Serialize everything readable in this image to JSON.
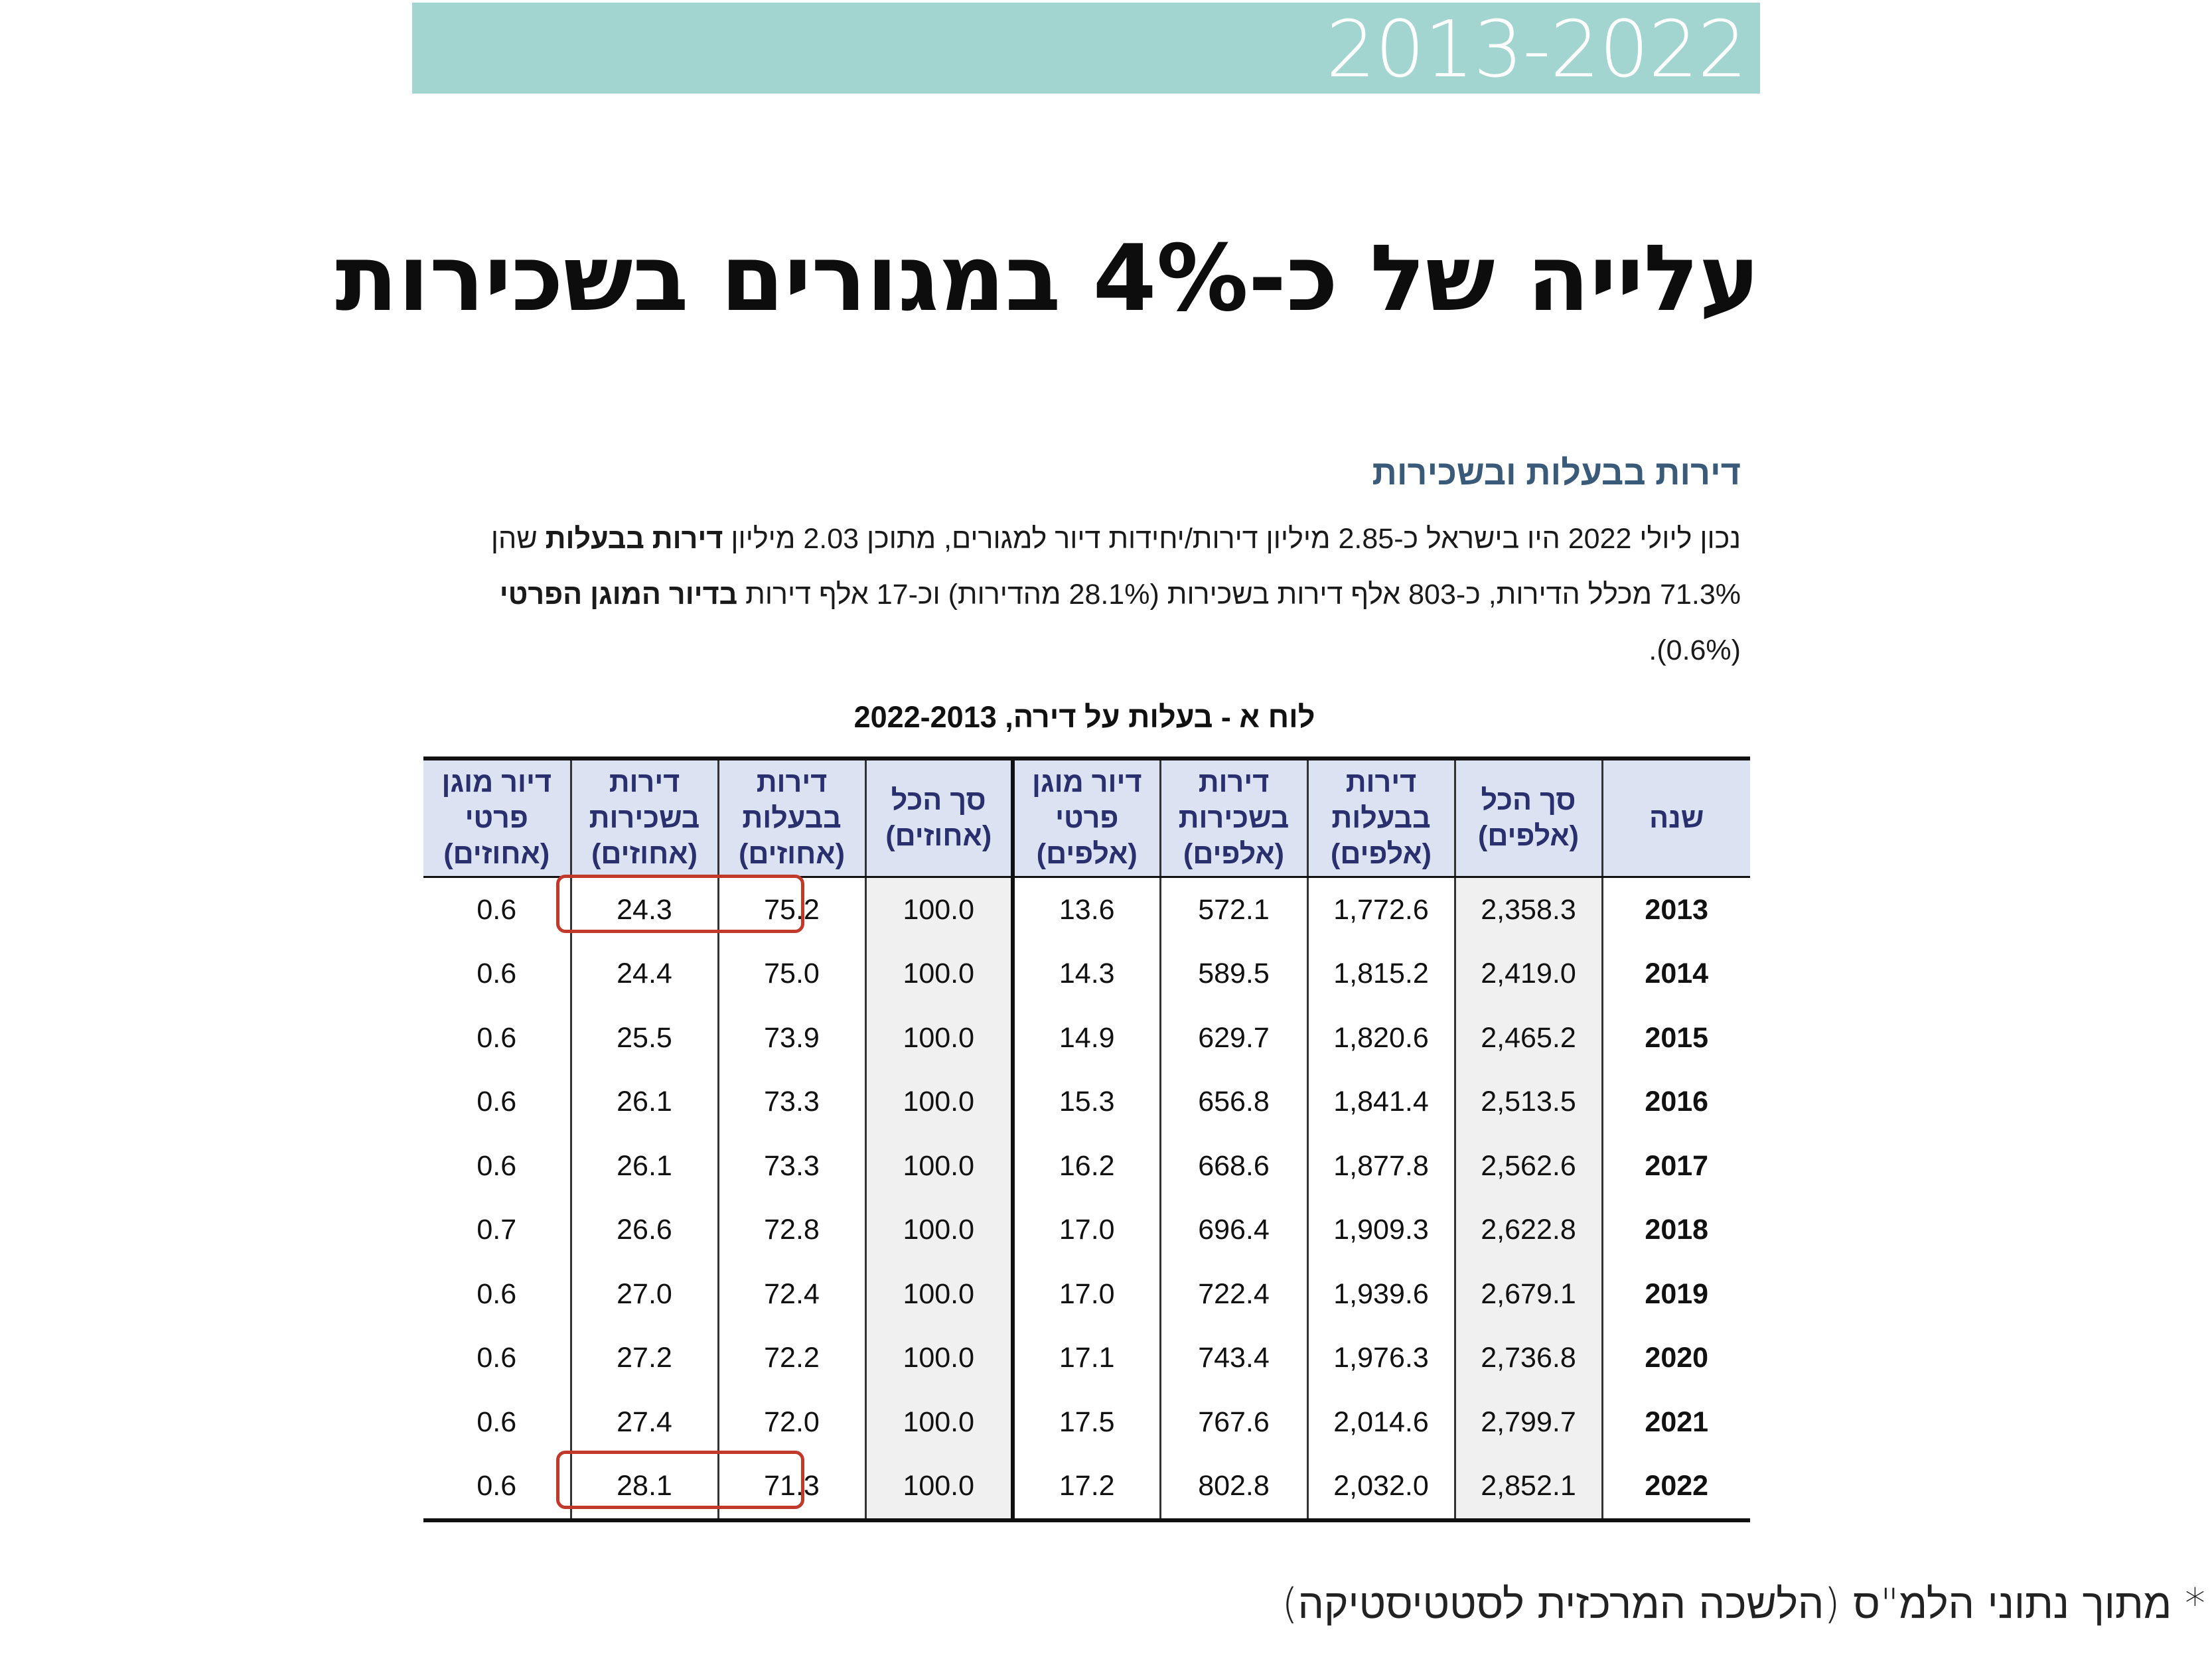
{
  "banner": {
    "years": "2013-2022"
  },
  "headline": "עלייה של כ-4% במגורים בשכירות",
  "section": {
    "title": "דירות בבעלות ובשכירות",
    "para": {
      "p1": "נכון ליולי 2022 היו בישראל כ-2.85 מיליון דירות/יחידות דיור למגורים, מתוכן 2.03 מיליון ",
      "b1": "דירות בבעלות",
      "p2": " שהן 71.3% מכלל הדירות, כ-803 אלף דירות בשכירות (28.1% מהדירות) וכ-17 אלף דירות ",
      "b2": "בדיור המוגן הפרטי",
      "p3": " (0.6%)."
    }
  },
  "table": {
    "caption": "לוח א - בעלות על דירה, 2022-2013",
    "headers": [
      "שנה",
      "סך הכל (אלפים)",
      "דירות בבעלות (אלפים)",
      "דירות בשכירות (אלפים)",
      "דיור מוגן פרטי (אלפים)",
      "סך הכל (אחוזים)",
      "דירות בבעלות (אחוזים)",
      "דירות בשכירות (אחוזים)",
      "דיור מוגן פרטי (אחוזים)"
    ],
    "rows": [
      [
        "2013",
        "2,358.3",
        "1,772.6",
        "572.1",
        "13.6",
        "100.0",
        "75.2",
        "24.3",
        "0.6"
      ],
      [
        "2014",
        "2,419.0",
        "1,815.2",
        "589.5",
        "14.3",
        "100.0",
        "75.0",
        "24.4",
        "0.6"
      ],
      [
        "2015",
        "2,465.2",
        "1,820.6",
        "629.7",
        "14.9",
        "100.0",
        "73.9",
        "25.5",
        "0.6"
      ],
      [
        "2016",
        "2,513.5",
        "1,841.4",
        "656.8",
        "15.3",
        "100.0",
        "73.3",
        "26.1",
        "0.6"
      ],
      [
        "2017",
        "2,562.6",
        "1,877.8",
        "668.6",
        "16.2",
        "100.0",
        "73.3",
        "26.1",
        "0.6"
      ],
      [
        "2018",
        "2,622.8",
        "1,909.3",
        "696.4",
        "17.0",
        "100.0",
        "72.8",
        "26.6",
        "0.7"
      ],
      [
        "2019",
        "2,679.1",
        "1,939.6",
        "722.4",
        "17.0",
        "100.0",
        "72.4",
        "27.0",
        "0.6"
      ],
      [
        "2020",
        "2,736.8",
        "1,976.3",
        "743.4",
        "17.1",
        "100.0",
        "72.2",
        "27.2",
        "0.6"
      ],
      [
        "2021",
        "2,799.7",
        "2,014.6",
        "767.6",
        "17.5",
        "100.0",
        "72.0",
        "27.4",
        "0.6"
      ],
      [
        "2022",
        "2,852.1",
        "2,032.0",
        "802.8",
        "17.2",
        "100.0",
        "71.3",
        "28.1",
        "0.6"
      ]
    ],
    "highlight_color": "#c0392b"
  },
  "source": "* מתוך נתוני הלמ\"ס (הלשכה המרכזית לסטטיסטיקה)"
}
